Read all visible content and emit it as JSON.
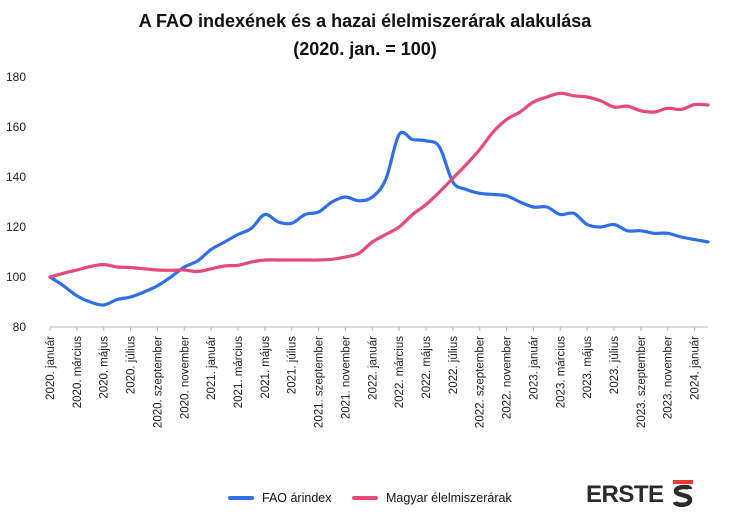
{
  "header": {
    "title_line1": "A FAO indexének és a hazai élelmiszerárak alakulása",
    "title_line2": "(2020. jan. = 100)"
  },
  "logo": {
    "text": "ERSTE"
  },
  "colors": {
    "fao": "#2F6FEB",
    "food": "#E8497A",
    "axis": "#999999",
    "text": "#222222"
  },
  "chart_data": {
    "type": "line",
    "title": "A FAO indexének és a hazai élelmiszerárak alakulása (2020. jan. = 100)",
    "ylim": [
      80,
      180
    ],
    "yticks": [
      80,
      100,
      120,
      140,
      160,
      180
    ],
    "grid": false,
    "legend_position": "bottom",
    "x_months": [
      "2020-01",
      "2020-02",
      "2020-03",
      "2020-04",
      "2020-05",
      "2020-06",
      "2020-07",
      "2020-08",
      "2020-09",
      "2020-10",
      "2020-11",
      "2020-12",
      "2021-01",
      "2021-02",
      "2021-03",
      "2021-04",
      "2021-05",
      "2021-06",
      "2021-07",
      "2021-08",
      "2021-09",
      "2021-10",
      "2021-11",
      "2021-12",
      "2022-01",
      "2022-02",
      "2022-03",
      "2022-04",
      "2022-05",
      "2022-06",
      "2022-07",
      "2022-08",
      "2022-09",
      "2022-10",
      "2022-11",
      "2022-12",
      "2023-01",
      "2023-02",
      "2023-03",
      "2023-04",
      "2023-05",
      "2023-06",
      "2023-07",
      "2023-08",
      "2023-09",
      "2023-10",
      "2023-11",
      "2023-12",
      "2024-01",
      "2024-02"
    ],
    "tick_labels": [
      {
        "index": 0,
        "label": "2020. január"
      },
      {
        "index": 2,
        "label": "2020. március"
      },
      {
        "index": 4,
        "label": "2020. május"
      },
      {
        "index": 6,
        "label": "2020. július"
      },
      {
        "index": 8,
        "label": "2020. szeptember"
      },
      {
        "index": 10,
        "label": "2020. november"
      },
      {
        "index": 12,
        "label": "2021. január"
      },
      {
        "index": 14,
        "label": "2021. március"
      },
      {
        "index": 16,
        "label": "2021. május"
      },
      {
        "index": 18,
        "label": "2021. július"
      },
      {
        "index": 20,
        "label": "2021. szeptember"
      },
      {
        "index": 22,
        "label": "2021. november"
      },
      {
        "index": 24,
        "label": "2022. január"
      },
      {
        "index": 26,
        "label": "2022. március"
      },
      {
        "index": 28,
        "label": "2022. május"
      },
      {
        "index": 30,
        "label": "2022. július"
      },
      {
        "index": 32,
        "label": "2022. szeptember"
      },
      {
        "index": 34,
        "label": "2022. november"
      },
      {
        "index": 36,
        "label": "2023. január"
      },
      {
        "index": 38,
        "label": "2023. március"
      },
      {
        "index": 40,
        "label": "2023. május"
      },
      {
        "index": 42,
        "label": "2023. július"
      },
      {
        "index": 44,
        "label": "2023. szeptember"
      },
      {
        "index": 46,
        "label": "2023. november"
      },
      {
        "index": 48,
        "label": "2024. január"
      }
    ],
    "series": [
      {
        "name": "FAO árindex",
        "color": "#2F6FEB",
        "values": [
          100,
          96.5,
          92.5,
          90,
          88.8,
          91,
          92,
          94,
          96.5,
          100,
          104,
          106.5,
          111,
          114,
          117,
          119.5,
          125,
          122,
          121.5,
          125,
          126,
          130,
          132,
          130.5,
          132,
          139,
          157,
          155,
          154.5,
          152,
          138,
          135,
          133.5,
          133,
          132.5,
          130,
          128,
          128,
          125,
          125.5,
          121,
          120,
          121,
          118.5,
          118.5,
          117.5,
          117.5,
          116,
          115,
          114
        ]
      },
      {
        "name": "Magyar élelmiszerárak",
        "color": "#E8497A",
        "values": [
          100,
          101.5,
          102.8,
          104.2,
          105,
          104,
          103.8,
          103.3,
          102.8,
          102.7,
          102.8,
          102.2,
          103.3,
          104.4,
          104.7,
          106,
          106.8,
          106.8,
          106.8,
          106.8,
          106.8,
          107.1,
          108,
          109.5,
          114,
          117,
          120,
          125,
          129,
          134,
          139.5,
          145,
          151,
          158,
          163,
          166,
          170,
          172,
          173.5,
          172.5,
          172,
          170.5,
          168,
          168.3,
          166.5,
          166,
          167.5,
          167,
          169,
          168.8
        ]
      }
    ]
  },
  "legend": {
    "fao": "FAO árindex",
    "food": "Magyar élelmiszerárak"
  }
}
